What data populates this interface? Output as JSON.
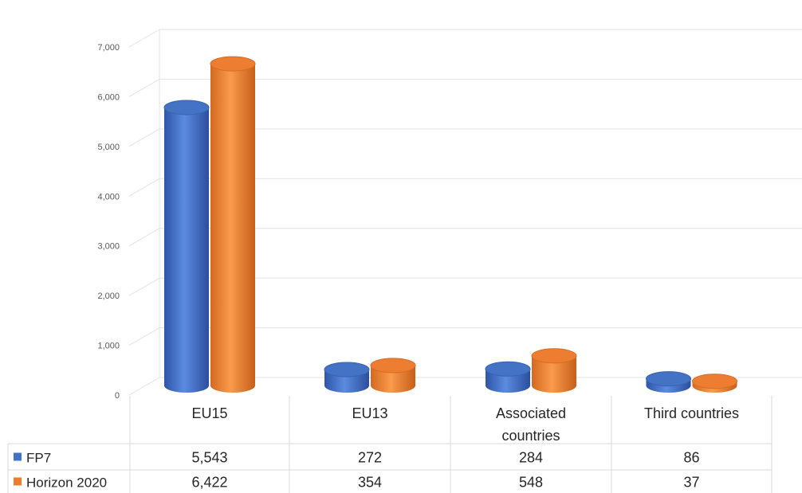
{
  "chart_data": {
    "type": "bar",
    "categories": [
      "EU15",
      "EU13",
      "Associated countries",
      "Third countries"
    ],
    "category_lines": [
      [
        "EU15"
      ],
      [
        "EU13"
      ],
      [
        "Associated",
        "countries"
      ],
      [
        "Third countries"
      ]
    ],
    "series": [
      {
        "name": "FP7",
        "values": [
          5543,
          272,
          284,
          86
        ],
        "labels": [
          "5,543",
          "272",
          "284",
          "86"
        ],
        "color": "#4472C4"
      },
      {
        "name": "Horizon 2020",
        "values": [
          6422,
          354,
          548,
          37
        ],
        "labels": [
          "6,422",
          "354",
          "548",
          "37"
        ],
        "color": "#ED7D31"
      }
    ],
    "yticks": [
      "0",
      "1,000",
      "2,000",
      "3,000",
      "4,000",
      "5,000",
      "6,000",
      "7,000"
    ],
    "ylim": [
      0,
      7000
    ],
    "grid": true,
    "legend": "data table",
    "title": "",
    "xlabel": "",
    "ylabel": ""
  }
}
